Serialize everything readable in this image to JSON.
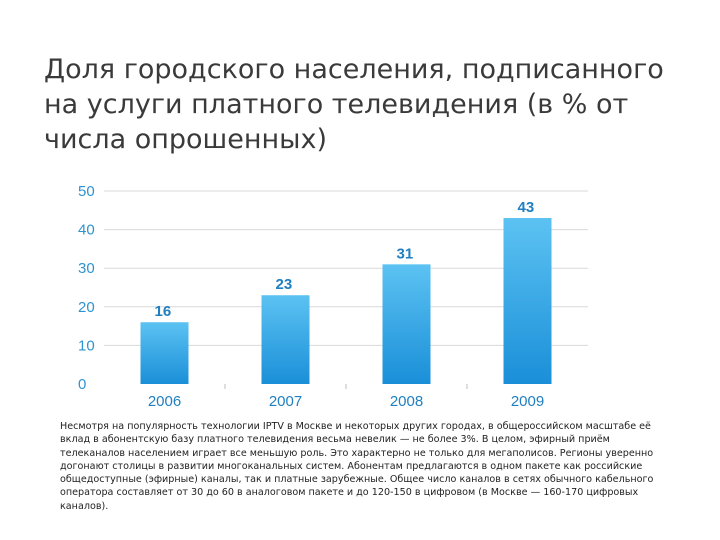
{
  "slide": {
    "title": "Доля городского населения, подписанного на услуги платного телевидения (в % от числа опрошенных)",
    "body_text": "Несмотря на популярность технологии IPTV в Москве и некоторых других городах, в общероссийском масштабе её вклад в абонентскую базу платного телевидения весьма невелик — не более 3%. В целом, эфирный приём телеканалов населением играет все меньшую роль. Это характерно не только для мегаполисов. Регионы уверенно догонают столицы в развитии многоканальных систем. Абонентам предлагаются в одном пакете как российские общедоступные (эфирные) каналы, так и платные зарубежные. Общее число каналов в сетях обычного кабельного оператора составляет от 30 до 60 в аналоговом пакете и до 120-150 в цифровом (в Москве — 160-170 цифровых каналов)."
  },
  "chart_data": {
    "type": "bar",
    "categories": [
      "2006",
      "2007",
      "2008",
      "2009"
    ],
    "values": [
      16,
      23,
      31,
      43
    ],
    "data_labels": [
      "16",
      "23",
      "31",
      "43"
    ],
    "yticks": [
      "0",
      "10",
      "20",
      "30",
      "40",
      "50"
    ],
    "ylim": [
      0,
      50
    ],
    "grid": true,
    "legend": "none",
    "bar_color_top": "#5cc2f2",
    "bar_color_bottom": "#1a8fd8",
    "grid_color": "#d9d9d9",
    "label_color": "#1f7fc0"
  }
}
